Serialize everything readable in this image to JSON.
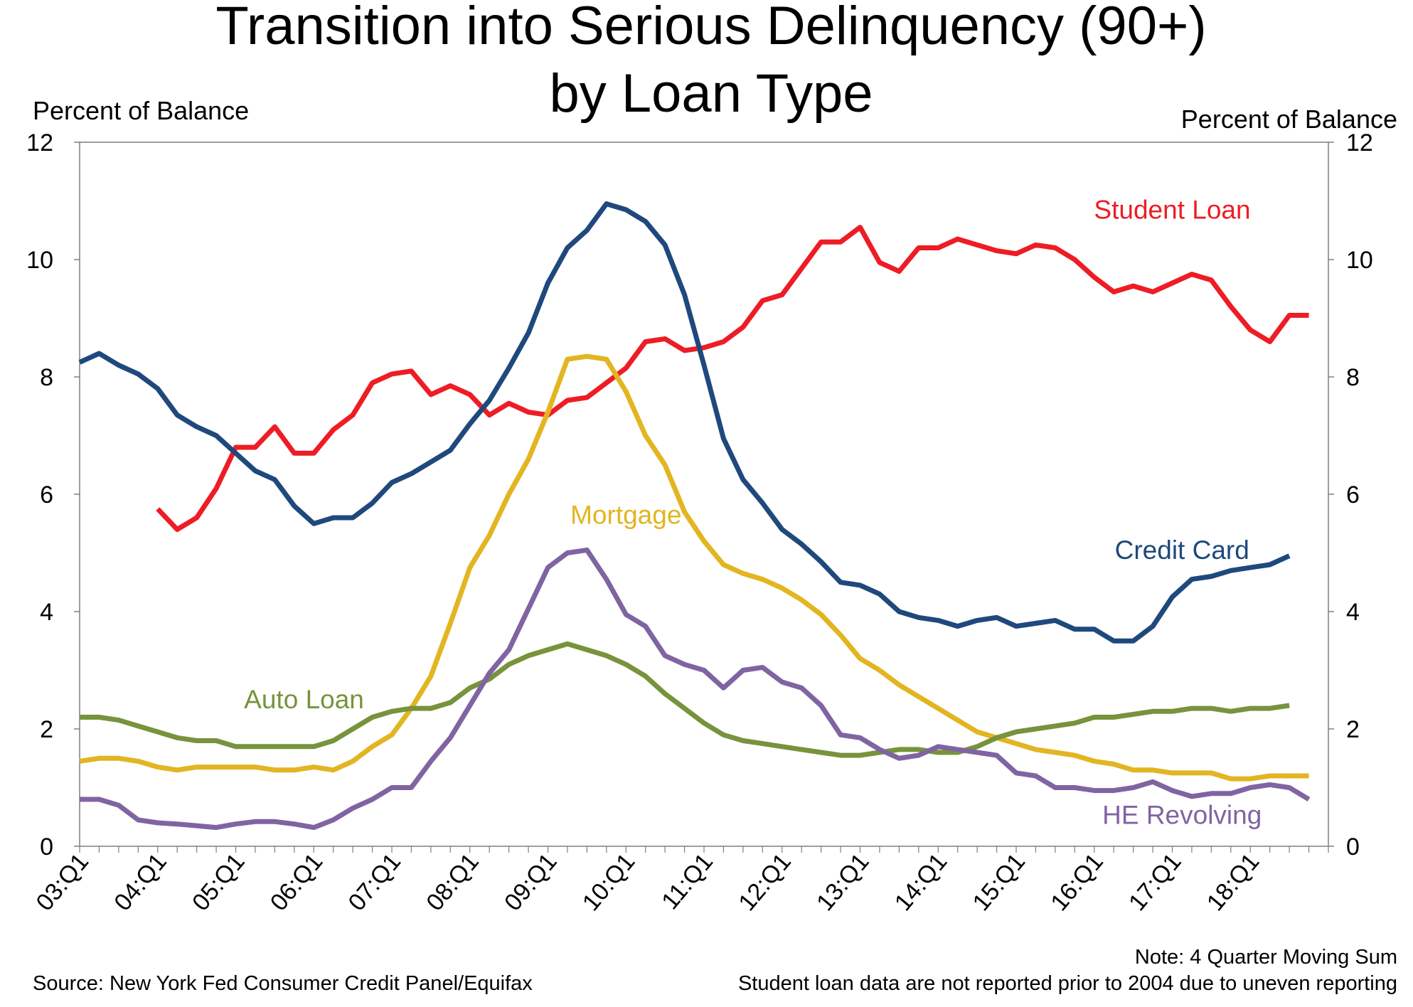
{
  "chart_data": {
    "type": "line",
    "title": "Transition into Serious Delinquency (90+)",
    "subtitle": "by Loan Type",
    "ylabel_left": "Percent of Balance",
    "ylabel_right": "Percent of Balance",
    "ylim": [
      0,
      12
    ],
    "yticks": [
      "0",
      "2",
      "4",
      "6",
      "8",
      "10",
      "12"
    ],
    "x_start_year": 2003,
    "x_quarters": 64,
    "x_tick_labels": [
      "03:Q1",
      "04:Q1",
      "05:Q1",
      "06:Q1",
      "07:Q1",
      "08:Q1",
      "09:Q1",
      "10:Q1",
      "11:Q1",
      "12:Q1",
      "13:Q1",
      "14:Q1",
      "15:Q1",
      "16:Q1",
      "17:Q1",
      "18:Q1"
    ],
    "grid": false,
    "series": [
      {
        "name": "Student Loan",
        "color": "#ee1c25",
        "label_pos": [
          56,
          10.7
        ],
        "start_index": 4,
        "values": [
          5.75,
          5.4,
          5.6,
          6.1,
          6.8,
          6.8,
          7.15,
          6.7,
          6.7,
          7.1,
          7.35,
          7.9,
          8.05,
          8.1,
          7.7,
          7.85,
          7.7,
          7.35,
          7.55,
          7.4,
          7.35,
          7.6,
          7.65,
          7.9,
          8.15,
          8.6,
          8.65,
          8.45,
          8.5,
          8.6,
          8.85,
          9.3,
          9.4,
          9.85,
          10.3,
          10.3,
          10.55,
          9.95,
          9.8,
          10.2,
          10.2,
          10.35,
          10.25,
          10.15,
          10.1,
          10.25,
          10.2,
          10.0,
          9.7,
          9.45,
          9.55,
          9.45,
          9.6,
          9.75,
          9.65,
          9.2,
          8.8,
          8.6,
          9.05,
          9.05
        ]
      },
      {
        "name": "Credit Card",
        "color": "#1f497d",
        "label_pos": [
          56.5,
          4.9
        ],
        "start_index": 0,
        "values": [
          8.25,
          8.4,
          8.2,
          8.05,
          7.8,
          7.35,
          7.15,
          7.0,
          6.7,
          6.4,
          6.25,
          5.8,
          5.5,
          5.6,
          5.6,
          5.85,
          6.2,
          6.35,
          6.55,
          6.75,
          7.2,
          7.6,
          8.15,
          8.75,
          9.6,
          10.2,
          10.5,
          10.95,
          10.85,
          10.65,
          10.25,
          9.4,
          8.2,
          6.95,
          6.25,
          5.85,
          5.4,
          5.15,
          4.85,
          4.5,
          4.45,
          4.3,
          4.0,
          3.9,
          3.85,
          3.75,
          3.85,
          3.9,
          3.75,
          3.8,
          3.85,
          3.7,
          3.7,
          3.5,
          3.5,
          3.75,
          4.25,
          4.55,
          4.6,
          4.7,
          4.75,
          4.8,
          4.95
        ]
      },
      {
        "name": "Mortgage",
        "color": "#e2b521",
        "label_pos": [
          28,
          5.5
        ],
        "start_index": 0,
        "values": [
          1.45,
          1.5,
          1.5,
          1.45,
          1.35,
          1.3,
          1.35,
          1.35,
          1.35,
          1.35,
          1.3,
          1.3,
          1.35,
          1.3,
          1.45,
          1.7,
          1.9,
          2.35,
          2.9,
          3.8,
          4.75,
          5.3,
          6.0,
          6.6,
          7.4,
          8.3,
          8.35,
          8.3,
          7.75,
          7.0,
          6.5,
          5.7,
          5.2,
          4.8,
          4.65,
          4.55,
          4.4,
          4.2,
          3.95,
          3.6,
          3.2,
          3.0,
          2.75,
          2.55,
          2.35,
          2.15,
          1.95,
          1.85,
          1.75,
          1.65,
          1.6,
          1.55,
          1.45,
          1.4,
          1.3,
          1.3,
          1.25,
          1.25,
          1.25,
          1.15,
          1.15,
          1.2,
          1.2,
          1.2
        ]
      },
      {
        "name": "Auto Loan",
        "color": "#77933c",
        "label_pos": [
          11.5,
          2.35
        ],
        "start_index": 0,
        "values": [
          2.2,
          2.2,
          2.15,
          2.05,
          1.95,
          1.85,
          1.8,
          1.8,
          1.7,
          1.7,
          1.7,
          1.7,
          1.7,
          1.8,
          2.0,
          2.2,
          2.3,
          2.35,
          2.35,
          2.45,
          2.7,
          2.85,
          3.1,
          3.25,
          3.35,
          3.45,
          3.35,
          3.25,
          3.1,
          2.9,
          2.6,
          2.35,
          2.1,
          1.9,
          1.8,
          1.75,
          1.7,
          1.65,
          1.6,
          1.55,
          1.55,
          1.6,
          1.65,
          1.65,
          1.6,
          1.6,
          1.7,
          1.85,
          1.95,
          2.0,
          2.05,
          2.1,
          2.2,
          2.2,
          2.25,
          2.3,
          2.3,
          2.35,
          2.35,
          2.3,
          2.35,
          2.35,
          2.4
        ]
      },
      {
        "name": "HE Revolving",
        "color": "#8064a2",
        "label_pos": [
          56.5,
          0.38
        ],
        "start_index": 0,
        "values": [
          0.8,
          0.8,
          0.7,
          0.45,
          0.4,
          0.38,
          0.35,
          0.32,
          0.38,
          0.42,
          0.42,
          0.38,
          0.32,
          0.45,
          0.65,
          0.8,
          1.0,
          1.0,
          1.45,
          1.85,
          2.4,
          2.95,
          3.35,
          4.05,
          4.75,
          5.0,
          5.05,
          4.55,
          3.95,
          3.75,
          3.25,
          3.1,
          3.0,
          2.7,
          3.0,
          3.05,
          2.8,
          2.7,
          2.4,
          1.9,
          1.85,
          1.65,
          1.5,
          1.55,
          1.7,
          1.65,
          1.6,
          1.55,
          1.25,
          1.2,
          1.0,
          1.0,
          0.95,
          0.95,
          1.0,
          1.1,
          0.95,
          0.85,
          0.9,
          0.9,
          1.0,
          1.05,
          1.0,
          0.8
        ]
      }
    ]
  },
  "note": "Note: 4 Quarter Moving Sum",
  "note2": "Student loan data are not reported prior to 2004 due to uneven reporting",
  "source": "Source: New York Fed Consumer Credit Panel/Equifax"
}
